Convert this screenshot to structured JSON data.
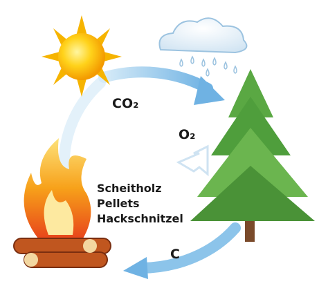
{
  "labels": {
    "co2": "CO₂",
    "o2": "O₂",
    "fuels": [
      "Scheitholz",
      "Pellets",
      "Hackschnitzel"
    ],
    "c": "C"
  }
}
